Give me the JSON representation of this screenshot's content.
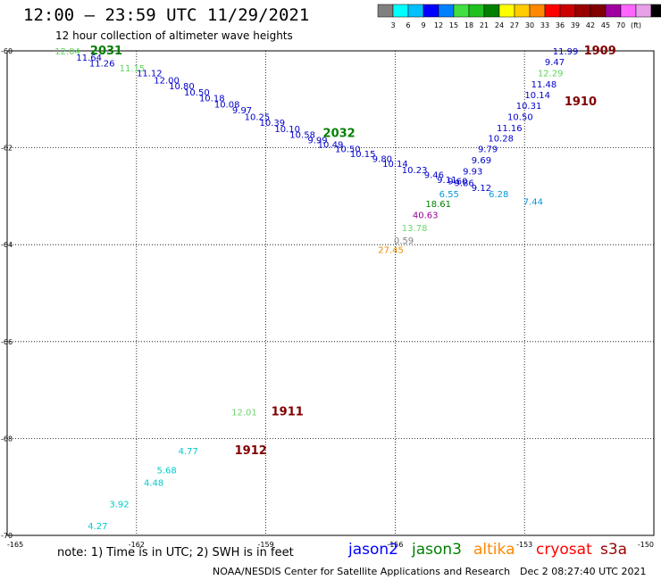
{
  "header": {
    "title": "12:00 – 23:59 UTC 11/29/2021",
    "subtitle": "12 hour collection of altimeter wave heights"
  },
  "legend": {
    "colors": [
      "#808080",
      "#00ffff",
      "#00c0ff",
      "#0000ff",
      "#0080ff",
      "#40e040",
      "#20c020",
      "#008000",
      "#ffff00",
      "#ffcc00",
      "#ff8800",
      "#ff0000",
      "#cc0000",
      "#990000",
      "#800000",
      "#a000a0",
      "#ff66ff",
      "#e8a0e8",
      "#000000"
    ],
    "labels": [
      "3",
      "6",
      "9",
      "12",
      "15",
      "18",
      "21",
      "24",
      "27",
      "30",
      "33",
      "36",
      "39",
      "42",
      "45",
      "70",
      "(ft)"
    ]
  },
  "map_data": {
    "latitudes": [
      "-60",
      "-62",
      "-64",
      "-66",
      "-68",
      "-70"
    ],
    "longitudes": [
      "-165",
      "-162",
      "-159",
      "-156",
      "-153",
      "-150"
    ],
    "readings": [
      {
        "value": "12.04",
        "lon": -163.6,
        "lat": -60.0,
        "color": "#5ad45a"
      },
      {
        "value": "11.64",
        "lon": -163.1,
        "lat": -60.13,
        "color": "#0000cc"
      },
      {
        "value": "11.26",
        "lon": -162.8,
        "lat": -60.25,
        "color": "#0000cc"
      },
      {
        "value": "11.15",
        "lon": -162.1,
        "lat": -60.35,
        "color": "#5ad45a"
      },
      {
        "value": "11.12",
        "lon": -161.7,
        "lat": -60.45,
        "color": "#0000cc"
      },
      {
        "value": "12.00",
        "lon": -161.3,
        "lat": -60.6,
        "color": "#0000cc"
      },
      {
        "value": "10.80",
        "lon": -160.95,
        "lat": -60.72,
        "color": "#0000cc"
      },
      {
        "value": "10.50",
        "lon": -160.6,
        "lat": -60.85,
        "color": "#0000cc"
      },
      {
        "value": "10.18",
        "lon": -160.25,
        "lat": -60.97,
        "color": "#0000cc"
      },
      {
        "value": "10.08",
        "lon": -159.9,
        "lat": -61.1,
        "color": "#0000cc"
      },
      {
        "value": "9.97",
        "lon": -159.55,
        "lat": -61.22,
        "color": "#0000cc"
      },
      {
        "value": "10.25",
        "lon": -159.2,
        "lat": -61.35,
        "color": "#0000cc"
      },
      {
        "value": "10.39",
        "lon": -158.85,
        "lat": -61.47,
        "color": "#0000cc"
      },
      {
        "value": "10.10",
        "lon": -158.5,
        "lat": -61.6,
        "color": "#0000cc"
      },
      {
        "value": "10.58",
        "lon": -158.15,
        "lat": -61.72,
        "color": "#0000cc"
      },
      {
        "value": "9.99",
        "lon": -157.8,
        "lat": -61.83,
        "color": "#0000cc"
      },
      {
        "value": "10.49",
        "lon": -157.5,
        "lat": -61.92,
        "color": "#0000cc"
      },
      {
        "value": "10.50",
        "lon": -157.1,
        "lat": -62.02,
        "color": "#0000cc"
      },
      {
        "value": "10.15",
        "lon": -156.75,
        "lat": -62.12,
        "color": "#0000cc"
      },
      {
        "value": "9.80",
        "lon": -156.3,
        "lat": -62.22,
        "color": "#0000cc"
      },
      {
        "value": "10.14",
        "lon": -156.0,
        "lat": -62.32,
        "color": "#0000cc"
      },
      {
        "value": "10.23",
        "lon": -155.55,
        "lat": -62.45,
        "color": "#0000cc"
      },
      {
        "value": "9.46",
        "lon": -155.1,
        "lat": -62.55,
        "color": "#0000cc"
      },
      {
        "value": "9.11",
        "lon": -154.8,
        "lat": -62.65,
        "color": "#0000cc"
      },
      {
        "value": "9.93",
        "lon": -154.2,
        "lat": -62.48,
        "color": "#0000cc"
      },
      {
        "value": "9.86",
        "lon": -154.4,
        "lat": -62.72,
        "color": "#0000cc"
      },
      {
        "value": "9.60",
        "lon": -154.55,
        "lat": -62.68,
        "color": "#0000cc"
      },
      {
        "value": "9.69",
        "lon": -154.0,
        "lat": -62.25,
        "color": "#0000cc"
      },
      {
        "value": "9.79",
        "lon": -153.85,
        "lat": -62.02,
        "color": "#0000cc"
      },
      {
        "value": "10.28",
        "lon": -153.55,
        "lat": -61.8,
        "color": "#0000cc"
      },
      {
        "value": "11.16",
        "lon": -153.35,
        "lat": -61.58,
        "color": "#0000cc"
      },
      {
        "value": "10.50",
        "lon": -153.1,
        "lat": -61.35,
        "color": "#0000cc"
      },
      {
        "value": "10.31",
        "lon": -152.9,
        "lat": -61.12,
        "color": "#0000cc"
      },
      {
        "value": "10.14",
        "lon": -152.7,
        "lat": -60.9,
        "color": "#0000cc"
      },
      {
        "value": "11.48",
        "lon": -152.55,
        "lat": -60.68,
        "color": "#0000cc"
      },
      {
        "value": "12.29",
        "lon": -152.4,
        "lat": -60.45,
        "color": "#5ad45a"
      },
      {
        "value": "9.47",
        "lon": -152.3,
        "lat": -60.22,
        "color": "#0000cc"
      },
      {
        "value": "11.99",
        "lon": -152.05,
        "lat": -60.0,
        "color": "#0000cc"
      },
      {
        "value": "9.12",
        "lon": -154.0,
        "lat": -62.82,
        "color": "#0000cc"
      },
      {
        "value": "6.55",
        "lon": -154.75,
        "lat": -62.95,
        "color": "#0099dd"
      },
      {
        "value": "6.28",
        "lon": -153.6,
        "lat": -62.95,
        "color": "#0099dd"
      },
      {
        "value": "7.44",
        "lon": -152.8,
        "lat": -63.1,
        "color": "#0099dd"
      },
      {
        "value": "18.61",
        "lon": -155.0,
        "lat": -63.15,
        "color": "#008000"
      },
      {
        "value": "40.63",
        "lon": -155.3,
        "lat": -63.38,
        "color": "#990099"
      },
      {
        "value": "13.78",
        "lon": -155.55,
        "lat": -63.65,
        "color": "#6ed46e"
      },
      {
        "value": "0.59",
        "lon": -155.8,
        "lat": -63.9,
        "color": "#808080"
      },
      {
        "value": "27.45",
        "lon": -156.1,
        "lat": -64.1,
        "color": "#e09000"
      },
      {
        "value": "12.01",
        "lon": -159.5,
        "lat": -67.45,
        "color": "#6ed46e"
      },
      {
        "value": "4.77",
        "lon": -160.8,
        "lat": -68.25,
        "color": "#00cccc"
      },
      {
        "value": "5.68",
        "lon": -161.3,
        "lat": -68.65,
        "color": "#00cccc"
      },
      {
        "value": "4.48",
        "lon": -161.6,
        "lat": -68.9,
        "color": "#00cccc"
      },
      {
        "value": "3.92",
        "lon": -162.4,
        "lat": -69.35,
        "color": "#00cccc"
      },
      {
        "value": "4.27",
        "lon": -162.9,
        "lat": -69.8,
        "color": "#00cccc"
      }
    ],
    "track_labels": [
      {
        "value": "2031",
        "lon": -162.7,
        "lat": -60.0,
        "color": "#008000"
      },
      {
        "value": "2032",
        "lon": -157.3,
        "lat": -61.7,
        "color": "#008000"
      },
      {
        "value": "1909",
        "lon": -151.25,
        "lat": -60.0,
        "color": "#800000"
      },
      {
        "value": "1910",
        "lon": -151.7,
        "lat": -61.05,
        "color": "#800000"
      },
      {
        "value": "1911",
        "lon": -158.5,
        "lat": -67.45,
        "color": "#800000"
      },
      {
        "value": "1912",
        "lon": -159.35,
        "lat": -68.25,
        "color": "#800000"
      }
    ]
  },
  "footer": {
    "note": "note: 1) Time is in UTC; 2) SWH is in feet",
    "satellites": [
      {
        "name": "jason2",
        "color": "#0000ff"
      },
      {
        "name": "jason3",
        "color": "#008000"
      },
      {
        "name": "altika",
        "color": "#ff8800"
      },
      {
        "name": "cryosat",
        "color": "#ff0000"
      },
      {
        "name": "s3a",
        "color": "#990000"
      }
    ],
    "credit": "NOAA/NESDIS Center for Satellite Applications and Research",
    "timestamp": "Dec  2 08:27:40 UTC 2021"
  }
}
